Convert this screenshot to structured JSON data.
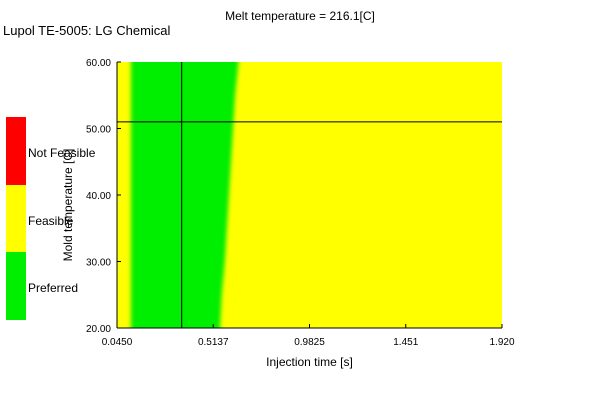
{
  "header": {
    "title": "Melt temperature = 216.1[C]",
    "material": "Lupol TE-5005: LG Chemical"
  },
  "legend": {
    "items": [
      {
        "label": "Not Feasible",
        "color": "#ff0000"
      },
      {
        "label": "Feasible",
        "color": "#ffff00"
      },
      {
        "label": "Preferred",
        "color": "#00ee00"
      }
    ]
  },
  "chart_data": {
    "type": "heatmap",
    "title": "Melt temperature = 216.1[C]",
    "xlabel": "Injection time [s]",
    "ylabel": "Mold temperature [C]",
    "xlim": [
      0.045,
      1.92
    ],
    "ylim": [
      20.0,
      60.0
    ],
    "x_ticks": [
      "0.0450",
      "0.5137",
      "0.9825",
      "1.451",
      "1.920"
    ],
    "y_ticks": [
      "20.00",
      "30.00",
      "40.00",
      "50.00",
      "60.00"
    ],
    "regions": [
      {
        "name": "Preferred",
        "color": "#00ee00",
        "x_min_at_y": [
          [
            20.0,
            0.113
          ],
          [
            60.0,
            0.113
          ]
        ],
        "x_max_at_y": [
          [
            20.0,
            0.545
          ],
          [
            25.0,
            0.555
          ],
          [
            30.0,
            0.57
          ],
          [
            35.0,
            0.58
          ],
          [
            40.0,
            0.59
          ],
          [
            45.0,
            0.6
          ],
          [
            50.0,
            0.61
          ],
          [
            55.0,
            0.62
          ],
          [
            60.0,
            0.64
          ]
        ]
      },
      {
        "name": "Feasible",
        "color": "#ffff00"
      }
    ],
    "crosshair": {
      "x": 0.36,
      "y": 51.0
    },
    "grid": false
  }
}
